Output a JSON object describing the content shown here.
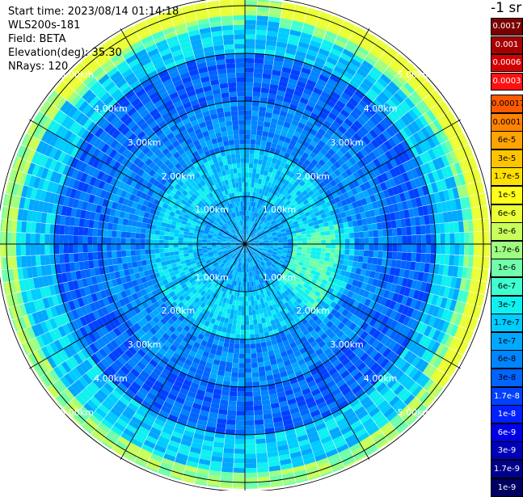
{
  "header": {
    "start_time": "Start time: 2023/08/14 01:14:18",
    "device": "WLS200s-181",
    "field": "Field: BETA",
    "elevation": "Elevation(deg): 35.30",
    "nrays": "NRays: 120"
  },
  "colorbar": {
    "unit": "-1 sr",
    "upper": [
      {
        "label": "0.0017",
        "color": "#7a0000"
      },
      {
        "label": "0.001",
        "color": "#a80000"
      },
      {
        "label": "0.0006",
        "color": "#d40000"
      },
      {
        "label": "0.0003",
        "color": "#ff1010"
      }
    ],
    "lower": [
      {
        "label": "0.00017",
        "color": "#ff5a00"
      },
      {
        "label": "0.0001",
        "color": "#ff8200"
      },
      {
        "label": "6e-5",
        "color": "#ffa400"
      },
      {
        "label": "3e-5",
        "color": "#ffc400"
      },
      {
        "label": "1.7e-5",
        "color": "#ffe000"
      },
      {
        "label": "1e-5",
        "color": "#ffff1a"
      },
      {
        "label": "6e-6",
        "color": "#eaff36"
      },
      {
        "label": "3e-6",
        "color": "#c8ff5a"
      },
      {
        "label": "1.7e-6",
        "color": "#a0ff80"
      },
      {
        "label": "1e-6",
        "color": "#70ffaa"
      },
      {
        "label": "6e-7",
        "color": "#40ffd0"
      },
      {
        "label": "3e-7",
        "color": "#10f0f0"
      },
      {
        "label": "1.7e-7",
        "color": "#00ccff"
      },
      {
        "label": "1e-7",
        "color": "#00a8ff"
      },
      {
        "label": "6e-8",
        "color": "#0084ff"
      },
      {
        "label": "3e-8",
        "color": "#0064ff"
      },
      {
        "label": "1.7e-8",
        "color": "#0040ff"
      },
      {
        "label": "1e-8",
        "color": "#0020ff"
      },
      {
        "label": "6e-9",
        "color": "#0000e6"
      },
      {
        "label": "3e-9",
        "color": "#0000b8"
      },
      {
        "label": "1.7e-9",
        "color": "#00008a"
      },
      {
        "label": "1e-9",
        "color": "#000060"
      }
    ]
  },
  "chart_data": {
    "type": "heatmap",
    "projection": "polar",
    "field": "BETA",
    "nrays": 120,
    "range_rings_km": [
      1,
      2,
      3,
      4,
      5
    ],
    "ring_labels": [
      "1.00km",
      "2.00km",
      "3.00km",
      "4.00km",
      "5.00km"
    ],
    "max_range_km": 5.2,
    "spokes_deg": [
      0,
      30,
      60,
      90,
      120,
      150,
      180,
      210,
      240,
      270,
      300,
      330
    ],
    "dominant_range_profile": [
      {
        "range_km": 0.5,
        "color": "#00a8ff"
      },
      {
        "range_km": 1.5,
        "color": "#00ccff"
      },
      {
        "range_km": 2.5,
        "color": "#0084ff"
      },
      {
        "range_km": 3.5,
        "color": "#0064ff"
      },
      {
        "range_km": 4.5,
        "color": "#00ccff"
      },
      {
        "range_km": 5.0,
        "color": "#a0ff80"
      }
    ],
    "colors": {
      "background": "#ffffff",
      "grid": "#000000",
      "label": "#ffffff"
    }
  }
}
